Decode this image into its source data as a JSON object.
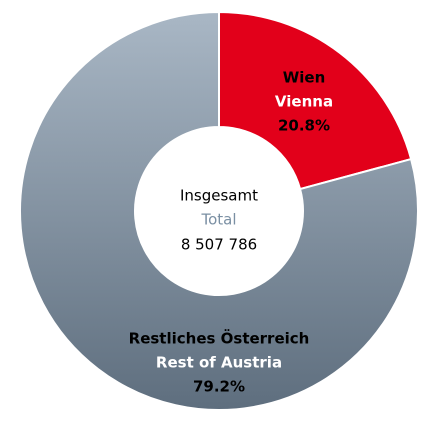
{
  "chart_data": {
    "type": "donut",
    "categories": [
      "Wien",
      "Restliches Österreich"
    ],
    "categories_en": [
      "Vienna",
      "Rest of Austria"
    ],
    "values": [
      20.8,
      79.2
    ],
    "value_labels": [
      "20.8%",
      "79.2%"
    ],
    "colors": [
      "#e2001a",
      "#a9b7c5"
    ],
    "center_label": "Insgesamt",
    "center_label_en": "Total",
    "total": {
      "value": 8507786,
      "label": "8 507 786"
    }
  }
}
